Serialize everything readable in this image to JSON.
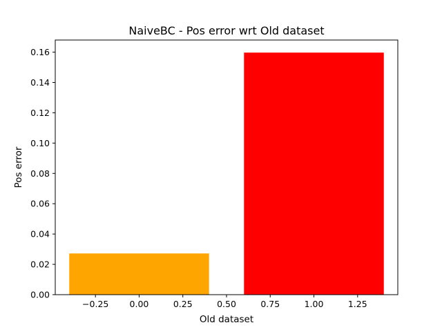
{
  "chart_data": {
    "type": "bar",
    "title": "NaiveBC - Pos error wrt Old dataset",
    "xlabel": "Old dataset",
    "ylabel": "Pos error",
    "xlim": [
      -0.48,
      1.48
    ],
    "ylim": [
      0,
      0.168
    ],
    "grid": false,
    "legend": "none",
    "bar_width": 0.8,
    "bars": [
      {
        "x": 0,
        "value": 0.0272,
        "color": "#ffa500"
      },
      {
        "x": 1,
        "value": 0.1597,
        "color": "#ff0000"
      }
    ],
    "x_ticks": [
      {
        "value": -0.25,
        "label": "−0.25"
      },
      {
        "value": 0.0,
        "label": "0.00"
      },
      {
        "value": 0.25,
        "label": "0.25"
      },
      {
        "value": 0.5,
        "label": "0.50"
      },
      {
        "value": 0.75,
        "label": "0.75"
      },
      {
        "value": 1.0,
        "label": "1.00"
      },
      {
        "value": 1.25,
        "label": "1.25"
      }
    ],
    "y_ticks": [
      {
        "value": 0.0,
        "label": "0.00"
      },
      {
        "value": 0.02,
        "label": "0.02"
      },
      {
        "value": 0.04,
        "label": "0.04"
      },
      {
        "value": 0.06,
        "label": "0.06"
      },
      {
        "value": 0.08,
        "label": "0.08"
      },
      {
        "value": 0.1,
        "label": "0.10"
      },
      {
        "value": 0.12,
        "label": "0.12"
      },
      {
        "value": 0.14,
        "label": "0.14"
      },
      {
        "value": 0.16,
        "label": "0.16"
      }
    ]
  }
}
